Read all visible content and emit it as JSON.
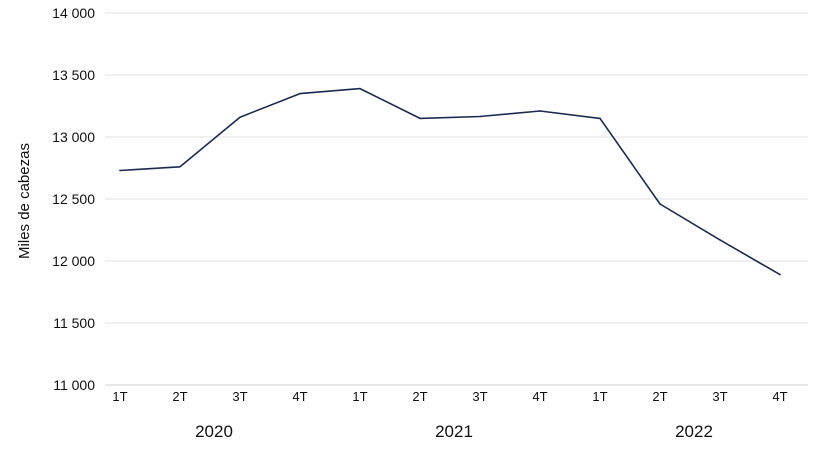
{
  "chart_data": {
    "type": "line",
    "ylabel": "Miles de cabezas",
    "ylim": [
      11000,
      14000
    ],
    "yticks": [
      {
        "value": 11000,
        "label": "11 000"
      },
      {
        "value": 11500,
        "label": "11 500"
      },
      {
        "value": 12000,
        "label": "12 000"
      },
      {
        "value": 12500,
        "label": "12 500"
      },
      {
        "value": 13000,
        "label": "13 000"
      },
      {
        "value": 13500,
        "label": "13 500"
      },
      {
        "value": 14000,
        "label": "14 000"
      }
    ],
    "categories": [
      "1T",
      "2T",
      "3T",
      "4T",
      "1T",
      "2T",
      "3T",
      "4T",
      "1T",
      "2T",
      "3T",
      "4T"
    ],
    "groups": [
      {
        "label": "2020",
        "span": [
          0,
          3
        ]
      },
      {
        "label": "2021",
        "span": [
          4,
          7
        ]
      },
      {
        "label": "2022",
        "span": [
          8,
          11
        ]
      }
    ],
    "series": [
      {
        "color": "#1b2a4e",
        "values": [
          12730,
          12760,
          13160,
          13350,
          13390,
          13150,
          13165,
          13210,
          13150,
          12460,
          12170,
          11890
        ]
      }
    ],
    "grid": true,
    "legend": "none"
  }
}
